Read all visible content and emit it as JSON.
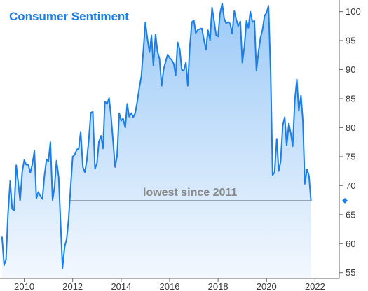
{
  "chart_data": {
    "type": "area",
    "title": "Consumer Sentiment",
    "xlabel": "",
    "ylabel": "",
    "xlim": [
      2009.0,
      2023.0
    ],
    "ylim": [
      54,
      102
    ],
    "x_ticks": [
      2010,
      2012,
      2014,
      2016,
      2018,
      2020,
      2022
    ],
    "x_tick_labels": [
      "2010",
      "2012",
      "2014",
      "2016",
      "2018",
      "2020",
      "2022"
    ],
    "y_ticks": [
      55,
      60,
      65,
      70,
      75,
      80,
      85,
      90,
      95,
      100
    ],
    "y_tick_labels": [
      "55",
      "60",
      "65",
      "70",
      "75",
      "80",
      "85",
      "90",
      "95",
      "100"
    ],
    "grid": false,
    "y_axis_side": "right",
    "colors": {
      "line": "#1a7fe8",
      "fill_top": "#9ccaf7",
      "fill_bottom": "#f3f8fe",
      "title": "#1a7fe8",
      "reference_line": "#6b7a89",
      "axis": "#666666"
    },
    "series": [
      {
        "values": [
          [
            2009.08,
            61.2
          ],
          [
            2009.17,
            56.3
          ],
          [
            2009.25,
            57.3
          ],
          [
            2009.33,
            65.1
          ],
          [
            2009.42,
            70.8
          ],
          [
            2009.5,
            66.0
          ],
          [
            2009.58,
            65.7
          ],
          [
            2009.67,
            73.5
          ],
          [
            2009.75,
            70.6
          ],
          [
            2009.83,
            67.4
          ],
          [
            2009.92,
            72.5
          ],
          [
            2010.0,
            74.4
          ],
          [
            2010.08,
            73.6
          ],
          [
            2010.17,
            73.6
          ],
          [
            2010.25,
            72.2
          ],
          [
            2010.33,
            73.6
          ],
          [
            2010.42,
            76.0
          ],
          [
            2010.5,
            67.8
          ],
          [
            2010.58,
            68.9
          ],
          [
            2010.67,
            68.2
          ],
          [
            2010.75,
            67.7
          ],
          [
            2010.83,
            71.6
          ],
          [
            2010.92,
            74.5
          ],
          [
            2011.0,
            74.2
          ],
          [
            2011.08,
            77.5
          ],
          [
            2011.17,
            67.5
          ],
          [
            2011.25,
            69.8
          ],
          [
            2011.33,
            74.3
          ],
          [
            2011.42,
            71.5
          ],
          [
            2011.5,
            63.7
          ],
          [
            2011.58,
            55.8
          ],
          [
            2011.67,
            59.5
          ],
          [
            2011.75,
            60.8
          ],
          [
            2011.83,
            64.1
          ],
          [
            2011.92,
            69.9
          ],
          [
            2012.0,
            75.0
          ],
          [
            2012.08,
            75.3
          ],
          [
            2012.17,
            76.2
          ],
          [
            2012.25,
            76.4
          ],
          [
            2012.33,
            79.3
          ],
          [
            2012.42,
            73.2
          ],
          [
            2012.5,
            72.3
          ],
          [
            2012.58,
            74.3
          ],
          [
            2012.67,
            78.3
          ],
          [
            2012.75,
            82.6
          ],
          [
            2012.83,
            82.7
          ],
          [
            2012.92,
            72.9
          ],
          [
            2013.0,
            73.8
          ],
          [
            2013.08,
            77.6
          ],
          [
            2013.17,
            78.6
          ],
          [
            2013.25,
            76.4
          ],
          [
            2013.33,
            84.5
          ],
          [
            2013.42,
            84.1
          ],
          [
            2013.5,
            85.1
          ],
          [
            2013.58,
            82.1
          ],
          [
            2013.67,
            77.5
          ],
          [
            2013.75,
            73.2
          ],
          [
            2013.83,
            75.1
          ],
          [
            2013.92,
            82.5
          ],
          [
            2014.0,
            81.2
          ],
          [
            2014.08,
            81.6
          ],
          [
            2014.17,
            80.0
          ],
          [
            2014.25,
            84.1
          ],
          [
            2014.33,
            81.9
          ],
          [
            2014.42,
            82.5
          ],
          [
            2014.5,
            81.8
          ],
          [
            2014.58,
            82.5
          ],
          [
            2014.67,
            84.6
          ],
          [
            2014.75,
            86.9
          ],
          [
            2014.83,
            88.8
          ],
          [
            2014.92,
            93.6
          ],
          [
            2015.0,
            98.1
          ],
          [
            2015.08,
            95.4
          ],
          [
            2015.17,
            93.0
          ],
          [
            2015.25,
            95.9
          ],
          [
            2015.33,
            90.7
          ],
          [
            2015.42,
            96.1
          ],
          [
            2015.5,
            93.1
          ],
          [
            2015.58,
            91.9
          ],
          [
            2015.67,
            87.2
          ],
          [
            2015.75,
            90.0
          ],
          [
            2015.83,
            91.3
          ],
          [
            2015.92,
            92.6
          ],
          [
            2016.0,
            92.0
          ],
          [
            2016.08,
            91.7
          ],
          [
            2016.17,
            91.0
          ],
          [
            2016.25,
            89.0
          ],
          [
            2016.33,
            94.7
          ],
          [
            2016.42,
            93.5
          ],
          [
            2016.5,
            90.0
          ],
          [
            2016.58,
            89.8
          ],
          [
            2016.67,
            91.2
          ],
          [
            2016.75,
            87.2
          ],
          [
            2016.83,
            93.8
          ],
          [
            2016.92,
            98.2
          ],
          [
            2017.0,
            98.5
          ],
          [
            2017.08,
            96.3
          ],
          [
            2017.17,
            96.9
          ],
          [
            2017.25,
            97.0
          ],
          [
            2017.33,
            97.1
          ],
          [
            2017.42,
            95.0
          ],
          [
            2017.5,
            93.4
          ],
          [
            2017.58,
            96.8
          ],
          [
            2017.67,
            95.1
          ],
          [
            2017.75,
            100.7
          ],
          [
            2017.83,
            98.5
          ],
          [
            2017.92,
            95.9
          ],
          [
            2018.0,
            95.7
          ],
          [
            2018.08,
            99.7
          ],
          [
            2018.17,
            101.4
          ],
          [
            2018.25,
            98.8
          ],
          [
            2018.33,
            98.0
          ],
          [
            2018.42,
            98.2
          ],
          [
            2018.5,
            97.9
          ],
          [
            2018.58,
            96.2
          ],
          [
            2018.67,
            100.1
          ],
          [
            2018.75,
            98.6
          ],
          [
            2018.83,
            97.5
          ],
          [
            2018.92,
            98.3
          ],
          [
            2019.0,
            91.2
          ],
          [
            2019.08,
            93.8
          ],
          [
            2019.17,
            98.4
          ],
          [
            2019.25,
            97.2
          ],
          [
            2019.33,
            100.0
          ],
          [
            2019.42,
            98.2
          ],
          [
            2019.5,
            98.4
          ],
          [
            2019.58,
            89.8
          ],
          [
            2019.67,
            93.2
          ],
          [
            2019.75,
            95.5
          ],
          [
            2019.83,
            96.8
          ],
          [
            2019.92,
            99.3
          ],
          [
            2020.0,
            99.8
          ],
          [
            2020.08,
            101.0
          ],
          [
            2020.17,
            89.1
          ],
          [
            2020.25,
            71.8
          ],
          [
            2020.33,
            72.3
          ],
          [
            2020.42,
            78.1
          ],
          [
            2020.5,
            72.5
          ],
          [
            2020.58,
            74.1
          ],
          [
            2020.67,
            80.4
          ],
          [
            2020.75,
            81.8
          ],
          [
            2020.83,
            76.9
          ],
          [
            2020.92,
            80.7
          ],
          [
            2021.0,
            79.0
          ],
          [
            2021.08,
            76.8
          ],
          [
            2021.17,
            84.9
          ],
          [
            2021.25,
            88.3
          ],
          [
            2021.33,
            82.9
          ],
          [
            2021.42,
            85.5
          ],
          [
            2021.5,
            81.2
          ],
          [
            2021.58,
            70.3
          ],
          [
            2021.67,
            72.8
          ],
          [
            2021.75,
            71.7
          ],
          [
            2021.83,
            67.4
          ]
        ]
      }
    ],
    "annotations": [
      {
        "text": "lowest since 2011",
        "type": "horizontal-reference-line",
        "y": 67.4,
        "x_start": 2011.9,
        "x_end": 2021.83
      }
    ],
    "last_value_marker": {
      "y": 67.4,
      "shape": "diamond"
    }
  }
}
